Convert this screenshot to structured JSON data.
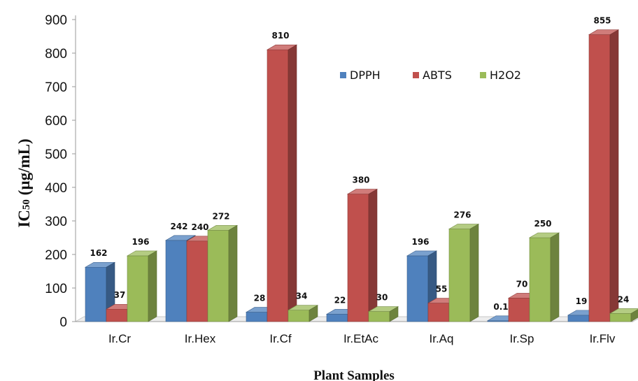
{
  "chart_data": {
    "type": "bar",
    "categories": [
      "Ir.Cr",
      "Ir.Hex",
      "Ir.Cf",
      "Ir.EtAc",
      "Ir.Aq",
      "Ir.Sp",
      "Ir.Flv"
    ],
    "series": [
      {
        "name": "DPPH",
        "color": "#4f81bd",
        "values": [
          162,
          242,
          28,
          22,
          196,
          0.1,
          19
        ],
        "labels": [
          "162",
          "242",
          "28",
          "22",
          "196",
          "0.1",
          "19"
        ]
      },
      {
        "name": "ABTS",
        "color": "#c0504d",
        "values": [
          37,
          240,
          810,
          380,
          55,
          70,
          855
        ],
        "labels": [
          "37",
          "240",
          "810",
          "380",
          "55",
          "70",
          "855"
        ]
      },
      {
        "name": "H2O2",
        "color": "#9bbb59",
        "values": [
          196,
          272,
          34,
          30,
          276,
          250,
          24
        ],
        "labels": [
          "196",
          "272",
          "34",
          "30",
          "276",
          "250",
          "24"
        ]
      }
    ],
    "xlabel": "Plant Samples",
    "ylabel_main": "IC",
    "ylabel_sub": "50",
    "ylabel_unit": " (µg/mL)",
    "ylim": [
      0,
      900
    ],
    "yticks": [
      "0",
      "100",
      "200",
      "300",
      "400",
      "500",
      "600",
      "700",
      "800",
      "900"
    ],
    "legend_position": "top-right",
    "grid": false
  }
}
